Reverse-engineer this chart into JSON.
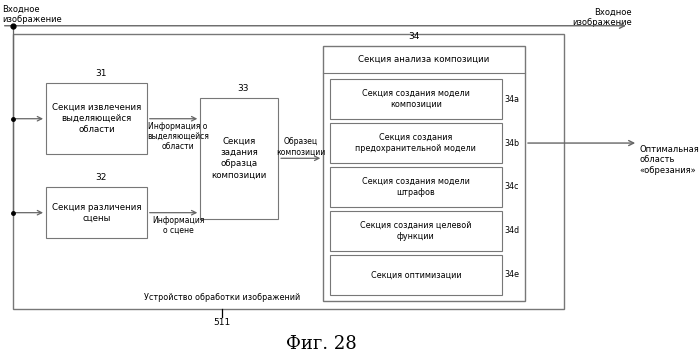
{
  "fig_title": "Фиг. 28",
  "bg_color": "#ffffff",
  "box_edge": "#777777",
  "text_color": "#000000",
  "arrow_color": "#666666",
  "label_left_img": "Входное\nизображение",
  "label_right_img": "Входное\nизображение",
  "label_optimal": "Оптимальная\nобласть\n«обрезания»",
  "label_device": "Устройство обработки изображений",
  "label_511": "511",
  "label_34": "34",
  "label_31": "31",
  "label_32": "32",
  "label_33": "33",
  "label_34a": "34a",
  "label_34b": "34b",
  "label_34c": "34c",
  "label_34d": "34d",
  "label_34e": "34e",
  "box31_text": "Секция извлечения\nвыделяющейся\nобласти",
  "box32_text": "Секция различения\nсцены",
  "box33_text": "Секция\nзадания\nобразца\nкомпозиции",
  "box34_top_text": "Секция анализа композиции",
  "box34a_text": "Секция создания модели\nкомпозиции",
  "box34b_text": "Секция создания\nпредохранительной модели",
  "box34c_text": "Секция создания модели\nштрафов",
  "box34d_text": "Секция создания целевой\nфункции",
  "box34e_text": "Секция оптимизации",
  "label_info1": "Информация о\nвыделяющейся\nобласти",
  "label_info2": "Информация\nо сцене",
  "label_obrazec": "Образец\nкомпозиции"
}
